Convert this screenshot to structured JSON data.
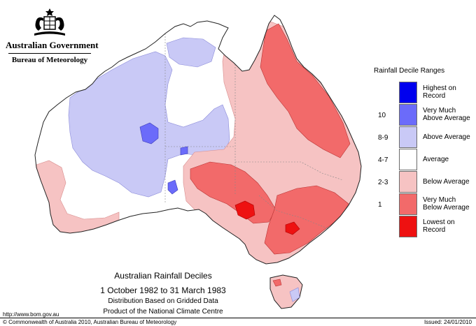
{
  "header": {
    "government": "Australian Government",
    "bureau": "Bureau of Meteorology"
  },
  "legend": {
    "title": "Rainfall Decile Ranges",
    "items": [
      {
        "range": "",
        "line1": "Highest on",
        "line2": "Record",
        "color": "#0000ee"
      },
      {
        "range": "10",
        "line1": "Very Much",
        "line2": "Above Average",
        "color": "#6b6bfa"
      },
      {
        "range": "8-9",
        "line1": "Above Average",
        "line2": "",
        "color": "#c9c9f6"
      },
      {
        "range": "4-7",
        "line1": "Average",
        "line2": "",
        "color": "#ffffff"
      },
      {
        "range": "2-3",
        "line1": "Below Average",
        "line2": "",
        "color": "#f6c3c3"
      },
      {
        "range": "1",
        "line1": "Very Much",
        "line2": "Below Average",
        "color": "#f26a6a"
      },
      {
        "range": "",
        "line1": "Lowest on",
        "line2": "Record",
        "color": "#ee1111"
      }
    ]
  },
  "caption": {
    "title": "Australian Rainfall Deciles",
    "dates": "1 October 1982 to 31 March 1983",
    "line1": "Distribution Based on Gridded Data",
    "line2": "Product of the National Climate Centre"
  },
  "footer": {
    "url": "http://www.bom.gov.au",
    "copyright": "© Commonwealth of Australia 2010, Australian Bureau of Meteorology",
    "issued": "Issued: 24/01/2010"
  }
}
